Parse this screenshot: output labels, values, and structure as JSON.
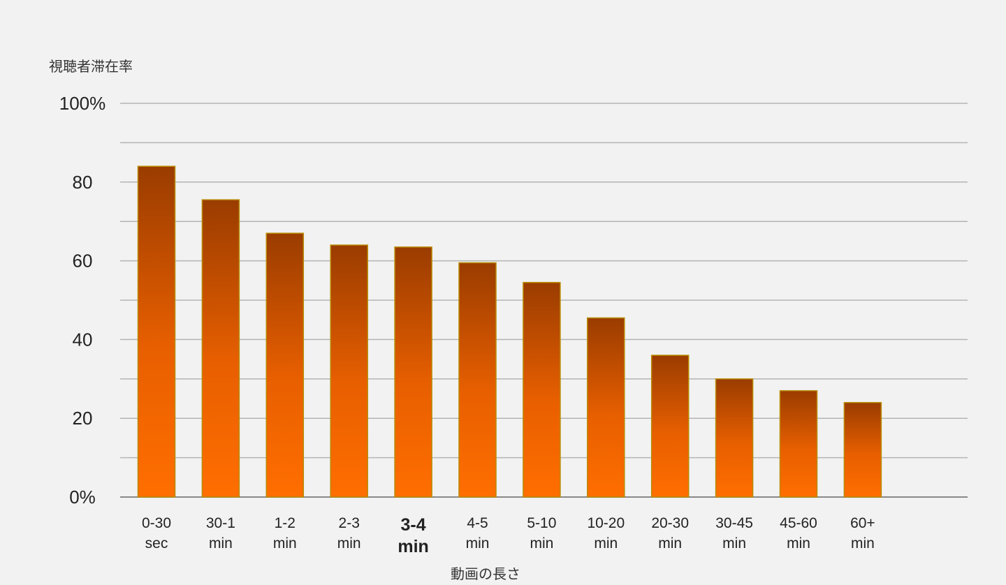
{
  "chart_data": {
    "type": "bar",
    "title": "",
    "ylabel": "視聴者滞在率",
    "xlabel": "動画の長さ",
    "ylim": [
      0,
      100
    ],
    "yticks": [
      {
        "value": 0,
        "label": "0%"
      },
      {
        "value": 20,
        "label": "20"
      },
      {
        "value": 40,
        "label": "40"
      },
      {
        "value": 60,
        "label": "60"
      },
      {
        "value": 80,
        "label": "80"
      },
      {
        "value": 100,
        "label": "100%"
      }
    ],
    "minor_grid_step": 10,
    "grid": true,
    "legend": "none",
    "categories": [
      {
        "line1": "0-30",
        "line2": "sec"
      },
      {
        "line1": "30-1",
        "line2": "min"
      },
      {
        "line1": "1-2",
        "line2": "min"
      },
      {
        "line1": "2-3",
        "line2": "min"
      },
      {
        "line1": "3-4",
        "line2": "min"
      },
      {
        "line1": "4-5",
        "line2": "min"
      },
      {
        "line1": "5-10",
        "line2": "min"
      },
      {
        "line1": "10-20",
        "line2": "min"
      },
      {
        "line1": "20-30",
        "line2": "min"
      },
      {
        "line1": "30-45",
        "line2": "min"
      },
      {
        "line1": "45-60",
        "line2": "min"
      },
      {
        "line1": "60+",
        "line2": "min"
      }
    ],
    "values": [
      84,
      75.5,
      67,
      64,
      63.5,
      59.5,
      54.5,
      45.5,
      36,
      30,
      27,
      24
    ],
    "highlight_index": 4,
    "colors": {
      "bar_top": "#9a3c00",
      "bar_bottom": "#ff6e00",
      "bar_stroke": "#b88a00",
      "grid": "#b4b4b4",
      "axis": "#888888",
      "highlight_text": "#ff7a1a",
      "background": "#f2f2f2"
    }
  }
}
